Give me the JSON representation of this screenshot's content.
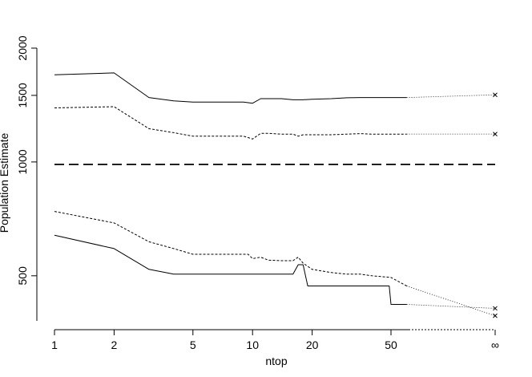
{
  "chart_data": {
    "type": "line",
    "title": "",
    "xlabel": "ntop",
    "ylabel": "Population Estimate",
    "x_scale": "log",
    "y_scale": "log",
    "xlim": [
      1,
      "∞"
    ],
    "ylim": [
      380,
      2000
    ],
    "x_ticks": [
      {
        "value": 1,
        "label": "1"
      },
      {
        "value": 2,
        "label": "2"
      },
      {
        "value": 5,
        "label": "5"
      },
      {
        "value": 10,
        "label": "10"
      },
      {
        "value": 20,
        "label": "20"
      },
      {
        "value": 50,
        "label": "50"
      },
      {
        "value": "∞",
        "label": "∞"
      }
    ],
    "y_ticks": [
      {
        "value": 500,
        "label": "500"
      },
      {
        "value": 1000,
        "label": "1000"
      },
      {
        "value": 1500,
        "label": "1500"
      },
      {
        "value": 2000,
        "label": "2000"
      }
    ],
    "reference_line": {
      "y": 985,
      "style": "long-dash"
    },
    "series": [
      {
        "style": "solid",
        "x": [
          1,
          2,
          3,
          4,
          5,
          6,
          7,
          8,
          9,
          9.5,
          10,
          11,
          12,
          14,
          16,
          17,
          18,
          20,
          25,
          30,
          35,
          40,
          50,
          60
        ],
        "y": [
          1700,
          1720,
          1480,
          1450,
          1440,
          1440,
          1440,
          1440,
          1440,
          1435,
          1430,
          1470,
          1470,
          1470,
          1460,
          1460,
          1460,
          1465,
          1470,
          1478,
          1480,
          1480,
          1480,
          1480
        ],
        "infinity_y": 1505
      },
      {
        "style": "dashed",
        "x": [
          1,
          2,
          3,
          4,
          5,
          6,
          7,
          8,
          9,
          9.5,
          10,
          11,
          12,
          14,
          16,
          17,
          18,
          20,
          25,
          30,
          35,
          40,
          50,
          60
        ],
        "y": [
          1390,
          1400,
          1225,
          1195,
          1170,
          1170,
          1170,
          1170,
          1170,
          1160,
          1150,
          1190,
          1190,
          1185,
          1185,
          1170,
          1180,
          1180,
          1180,
          1185,
          1188,
          1185,
          1185,
          1185
        ],
        "infinity_y": 1185
      },
      {
        "style": "dashed",
        "x": [
          1,
          2,
          3,
          4,
          5,
          6,
          7,
          8,
          9,
          9.5,
          10,
          11,
          12,
          14,
          16,
          17,
          18,
          20,
          25,
          30,
          35,
          40,
          50,
          60
        ],
        "y": [
          740,
          690,
          615,
          590,
          570,
          570,
          570,
          570,
          570,
          570,
          555,
          560,
          550,
          548,
          548,
          560,
          540,
          520,
          510,
          505,
          505,
          500,
          495,
          470
        ],
        "infinity_y": 392
      },
      {
        "style": "solid",
        "x": [
          1,
          2,
          3,
          4,
          5,
          6,
          7,
          8,
          9,
          10,
          11,
          12,
          14,
          16,
          17,
          18,
          19,
          20,
          25,
          30,
          40,
          49,
          50,
          60
        ],
        "y": [
          640,
          590,
          520,
          505,
          505,
          505,
          505,
          505,
          505,
          505,
          505,
          505,
          505,
          505,
          535,
          535,
          470,
          470,
          470,
          470,
          470,
          470,
          420,
          420
        ],
        "infinity_y": 410
      }
    ]
  }
}
